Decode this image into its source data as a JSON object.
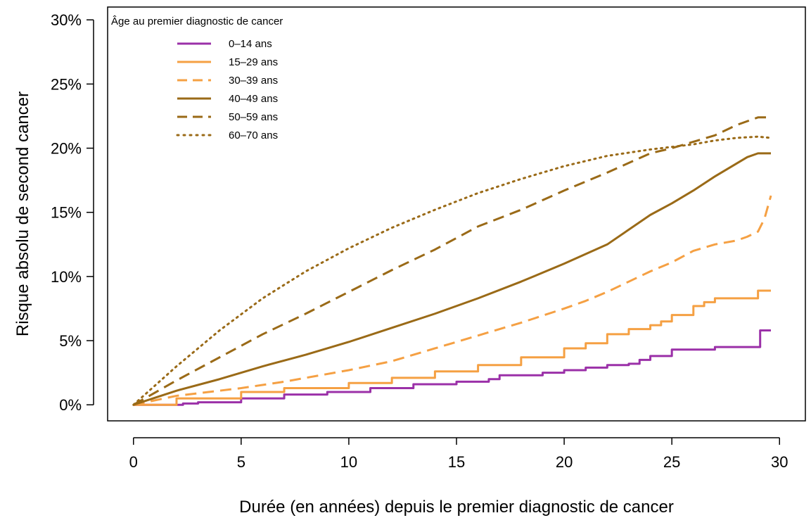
{
  "chart_data": {
    "type": "line",
    "xlabel": "Durée (en années) depuis le premier diagnostic de cancer",
    "ylabel": "Risque absolu de second cancer",
    "xlim": [
      -1.2,
      31.2
    ],
    "ylim": [
      -0.0125,
      0.31
    ],
    "xticks": [
      0,
      5,
      10,
      15,
      20,
      25,
      30
    ],
    "xtick_labels": [
      "0",
      "5",
      "10",
      "15",
      "20",
      "25",
      "30"
    ],
    "yticks": [
      0,
      0.05,
      0.1,
      0.15,
      0.2,
      0.25,
      0.3
    ],
    "ytick_labels": [
      "0%",
      "5%",
      "10%",
      "15%",
      "20%",
      "25%",
      "30%"
    ],
    "grid": false,
    "legend": {
      "title": "Âge au premier diagnostic de cancer",
      "placement": "top-left"
    },
    "series": [
      {
        "name": "0–14 ans",
        "color": "#9b30a8",
        "dash": "solid",
        "step": true,
        "x": [
          0,
          2.3,
          3,
          5,
          7,
          9,
          11,
          13,
          15,
          16.5,
          17,
          19,
          20,
          21,
          22,
          23,
          23.5,
          24,
          25,
          25,
          26.5,
          27,
          28,
          29,
          29.1,
          29.6
        ],
        "y": [
          0,
          0.001,
          0.002,
          0.005,
          0.008,
          0.01,
          0.013,
          0.016,
          0.018,
          0.02,
          0.023,
          0.025,
          0.027,
          0.029,
          0.031,
          0.032,
          0.035,
          0.038,
          0.038,
          0.043,
          0.043,
          0.045,
          0.045,
          0.045,
          0.058,
          0.058
        ]
      },
      {
        "name": "15–29 ans",
        "color": "#f5a043",
        "dash": "solid",
        "step": true,
        "x": [
          0,
          2,
          5,
          7,
          10,
          12,
          14,
          16,
          18,
          20,
          21,
          22,
          23,
          24,
          24.5,
          25,
          26,
          26.5,
          27,
          28,
          29,
          29.6
        ],
        "y": [
          0,
          0.005,
          0.01,
          0.013,
          0.017,
          0.021,
          0.026,
          0.031,
          0.037,
          0.044,
          0.048,
          0.055,
          0.059,
          0.062,
          0.065,
          0.07,
          0.077,
          0.08,
          0.083,
          0.083,
          0.089,
          0.089
        ]
      },
      {
        "name": "30–39 ans",
        "color": "#f5a043",
        "dash": "dashed",
        "step": false,
        "x": [
          0,
          2,
          5,
          7,
          10,
          12,
          14,
          16,
          18,
          20,
          21,
          22,
          23,
          24,
          25,
          26,
          27,
          28,
          28.5,
          29,
          29.3,
          29.6
        ],
        "y": [
          0,
          0.007,
          0.013,
          0.018,
          0.027,
          0.034,
          0.044,
          0.054,
          0.064,
          0.075,
          0.081,
          0.088,
          0.096,
          0.104,
          0.111,
          0.12,
          0.125,
          0.128,
          0.131,
          0.135,
          0.145,
          0.163
        ]
      },
      {
        "name": "40–49 ans",
        "color": "#9a6a17",
        "dash": "solid",
        "step": false,
        "x": [
          0,
          2,
          4,
          6,
          8,
          10,
          12,
          14,
          16,
          18,
          20,
          22,
          24,
          25,
          26,
          27,
          28,
          28.5,
          29,
          29.6
        ],
        "y": [
          0,
          0.011,
          0.02,
          0.03,
          0.039,
          0.049,
          0.06,
          0.071,
          0.083,
          0.096,
          0.11,
          0.125,
          0.148,
          0.157,
          0.167,
          0.178,
          0.188,
          0.193,
          0.196,
          0.196
        ]
      },
      {
        "name": "50–59 ans",
        "color": "#9a6a17",
        "dash": "dashed",
        "step": false,
        "x": [
          0,
          2,
          4,
          6,
          8,
          10,
          12,
          14,
          16,
          18,
          20,
          22,
          24,
          25,
          26,
          27,
          28,
          29,
          29.6
        ],
        "y": [
          0,
          0.019,
          0.037,
          0.055,
          0.071,
          0.088,
          0.105,
          0.121,
          0.139,
          0.152,
          0.167,
          0.181,
          0.196,
          0.2,
          0.205,
          0.21,
          0.218,
          0.224,
          0.224
        ]
      },
      {
        "name": "60–70 ans",
        "color": "#9a6a17",
        "dash": "dotted",
        "step": false,
        "x": [
          0,
          2,
          4,
          6,
          8,
          10,
          12,
          14,
          16,
          18,
          20,
          22,
          24,
          26,
          27,
          28,
          29,
          29.6
        ],
        "y": [
          0,
          0.03,
          0.058,
          0.083,
          0.104,
          0.122,
          0.138,
          0.152,
          0.165,
          0.176,
          0.186,
          0.194,
          0.199,
          0.203,
          0.206,
          0.208,
          0.209,
          0.208
        ]
      }
    ]
  }
}
